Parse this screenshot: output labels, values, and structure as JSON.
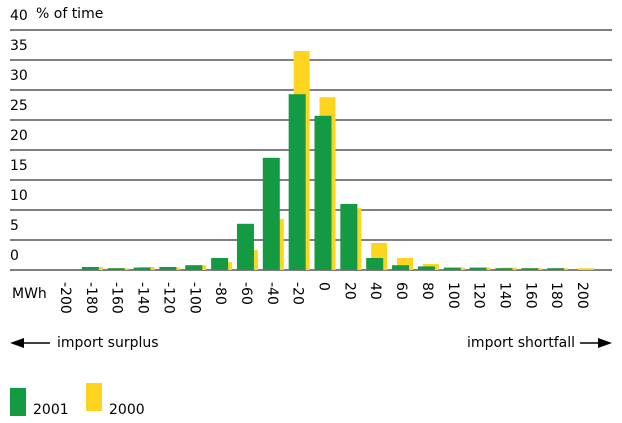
{
  "chart_data": {
    "type": "bar",
    "y_label": "% of time",
    "x_label": "MWh",
    "categories": [
      "-200",
      "-180",
      "-160",
      "-140",
      "-120",
      "-100",
      "-80",
      "-60",
      "-40",
      "-20",
      "0",
      "20",
      "40",
      "60",
      "80",
      "100",
      "120",
      "140",
      "160",
      "180",
      "200"
    ],
    "series": [
      {
        "name": "2001",
        "color": "#139a43",
        "values": [
          0,
          0.5,
          0.3,
          0.4,
          0.5,
          0.8,
          2.0,
          7.7,
          18.7,
          29.3,
          25.7,
          11.0,
          2.0,
          0.8,
          0.6,
          0.4,
          0.4,
          0.3,
          0.3,
          0.3,
          0
        ]
      },
      {
        "name": "2000",
        "color": "#fdd520",
        "values": [
          0,
          0.5,
          0.3,
          0.5,
          0.4,
          0.8,
          1.3,
          3.3,
          8.5,
          36.5,
          28.8,
          10.3,
          4.5,
          2.0,
          1.0,
          0.4,
          0.4,
          0.4,
          0.3,
          0.3,
          0.3
        ]
      }
    ],
    "ylim": [
      0,
      40
    ],
    "yticks": [
      0,
      5,
      10,
      15,
      20,
      25,
      30,
      35,
      40
    ],
    "grid": true,
    "annotations": [
      "import surplus",
      "import shortfall"
    ]
  }
}
